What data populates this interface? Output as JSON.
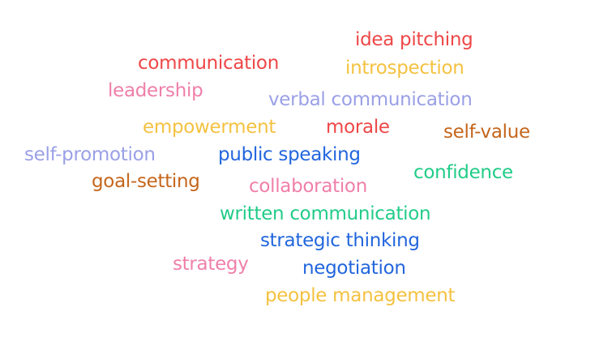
{
  "words": [
    {
      "text": "idea pitching",
      "color": "#ee4747"
    },
    {
      "text": "communication",
      "color": "#ee4747"
    },
    {
      "text": "introspection",
      "color": "#f4c241"
    },
    {
      "text": "leadership",
      "color": "#ef7fa9"
    },
    {
      "text": "verbal communication",
      "color": "#9aa0e6"
    },
    {
      "text": "empowerment",
      "color": "#f4c241"
    },
    {
      "text": "morale",
      "color": "#ee4747"
    },
    {
      "text": "self-value",
      "color": "#c5661c"
    },
    {
      "text": "self-promotion",
      "color": "#9aa0e6"
    },
    {
      "text": "public speaking",
      "color": "#2266dd"
    },
    {
      "text": "confidence",
      "color": "#22cc88"
    },
    {
      "text": "goal-setting",
      "color": "#c5661c"
    },
    {
      "text": "collaboration",
      "color": "#ef7fa9"
    },
    {
      "text": "written communication",
      "color": "#22cc88"
    },
    {
      "text": "strategic thinking",
      "color": "#2266dd"
    },
    {
      "text": "strategy",
      "color": "#ef7fa9"
    },
    {
      "text": "negotiation",
      "color": "#2266dd"
    },
    {
      "text": "people management",
      "color": "#f4c241"
    }
  ]
}
